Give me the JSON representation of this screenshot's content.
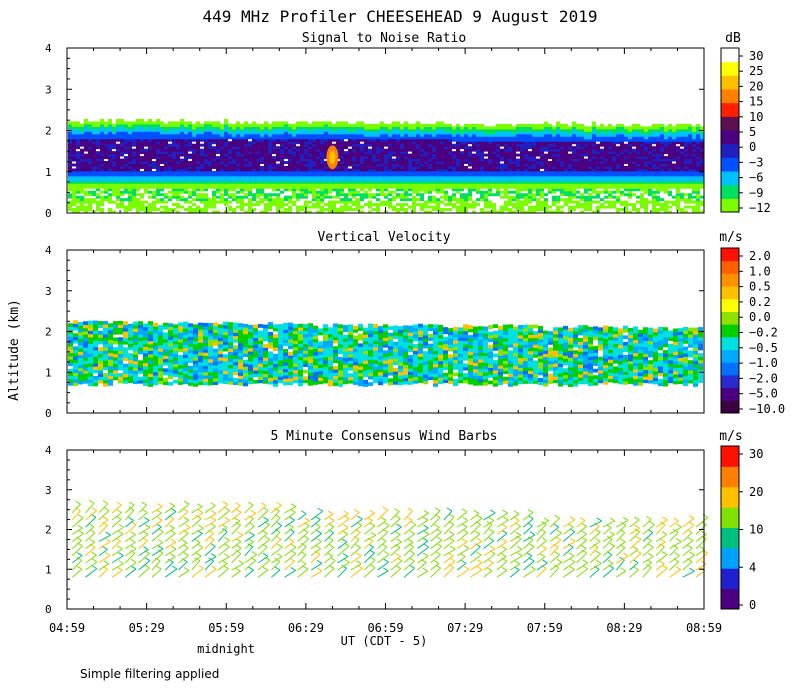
{
  "title": "449 MHz Profiler CHEESEHEAD  9 August 2019",
  "ylabel": "Altitude (km)",
  "xlabel": "UT  (CDT - 5)",
  "midnight_label": "midnight",
  "footnote": "Simple filtering applied",
  "x_ticks": [
    "04:59",
    "05:29",
    "05:59",
    "06:29",
    "06:59",
    "07:29",
    "07:59",
    "08:29",
    "08:59"
  ],
  "colors": {
    "snr": [
      "#7cfc00",
      "#00e060",
      "#00c0ff",
      "#0050ff",
      "#2020c0",
      "#4b0082",
      "#5c1050",
      "#ff2000",
      "#ff8000",
      "#ffc000",
      "#ffff00",
      "#ffffff"
    ],
    "vv": [
      "#3a0040",
      "#4b0082",
      "#2a2ad0",
      "#0070ff",
      "#00aaff",
      "#00e0e0",
      "#00d000",
      "#90e000",
      "#ffff00",
      "#ffc000",
      "#ff9000",
      "#ff6000",
      "#ff1000"
    ],
    "wind": [
      "#4b0082",
      "#2020d0",
      "#00a0ff",
      "#00c080",
      "#80e000",
      "#ffc000",
      "#ff8000",
      "#ff1000"
    ]
  },
  "chart_data": [
    {
      "type": "heatmap",
      "title": "Signal to Noise Ratio",
      "unit": "dB",
      "xlabel": "UT  (CDT - 5)",
      "ylabel": "Altitude (km)",
      "x_range": [
        "04:59",
        "08:59"
      ],
      "ylim": [
        0,
        4
      ],
      "y_ticks": [
        "0",
        "1",
        "2",
        "3",
        "4"
      ],
      "colorbar_ticks": [
        "30",
        "25",
        "20",
        "15",
        "10",
        "5",
        "0",
        "−3",
        "−6",
        "−9",
        "−12"
      ],
      "layer_approx": {
        "signal_base_km": 0.6,
        "signal_top_km": 2.2,
        "core_min_km": 1.0,
        "core_max_km": 1.8,
        "peak_time": "06:39",
        "peak_altitude_km": 1.35,
        "peak_snr_db": 18
      }
    },
    {
      "type": "heatmap",
      "title": "Vertical Velocity",
      "unit": "m/s",
      "xlabel": "UT  (CDT - 5)",
      "ylabel": "Altitude (km)",
      "x_range": [
        "04:59",
        "08:59"
      ],
      "ylim": [
        0,
        4
      ],
      "y_ticks": [
        "0",
        "1",
        "2",
        "3",
        "4"
      ],
      "colorbar_ticks": [
        "2.0",
        "1.0",
        "0.5",
        "0.2",
        "0.0",
        "−0.2",
        "−0.5",
        "−1.0",
        "−2.0",
        "−5.0",
        "−10.0"
      ],
      "layer_approx": {
        "data_base_km": 0.7,
        "data_top_km": 2.2
      }
    },
    {
      "type": "scatter",
      "title": "5 Minute Consensus Wind Barbs",
      "unit": "m/s",
      "xlabel": "UT  (CDT - 5)",
      "ylabel": "Altitude (km)",
      "x_range": [
        "04:59",
        "08:59"
      ],
      "ylim": [
        0,
        4
      ],
      "y_ticks": [
        "0",
        "1",
        "2",
        "3",
        "4"
      ],
      "colorbar_ticks": [
        "30",
        "20",
        "10",
        "4",
        "0"
      ],
      "barb_interval_min": 5,
      "barb_altitude_range_km": [
        0.8,
        2.6
      ],
      "typical_speed_ms": 10
    }
  ]
}
